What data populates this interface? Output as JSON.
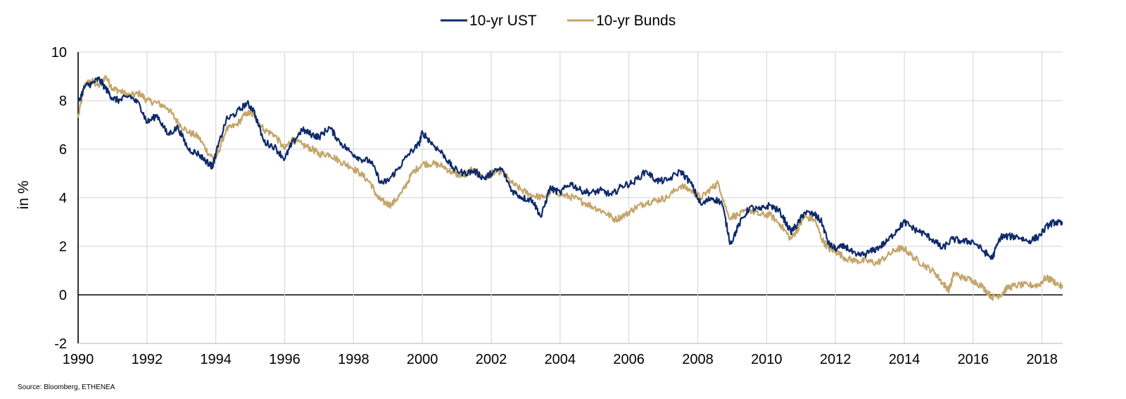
{
  "chart_data": {
    "type": "line",
    "ylabel": "in %",
    "xlabel": "",
    "ylim": [
      -2,
      10
    ],
    "xlim": [
      1990,
      2018.6
    ],
    "x_ticks": [
      "1990",
      "1992",
      "1994",
      "1996",
      "1998",
      "2000",
      "2002",
      "2004",
      "2006",
      "2008",
      "2010",
      "2012",
      "2014",
      "2016",
      "2018"
    ],
    "y_ticks": [
      "-2",
      "0",
      "2",
      "4",
      "6",
      "8",
      "10"
    ],
    "grid": true,
    "legend_position": "top-center",
    "series": [
      {
        "name": "10-yr UST",
        "color": "#0f2a6b",
        "x": [
          1990.0,
          1990.2,
          1990.4,
          1990.6,
          1990.8,
          1991.0,
          1991.2,
          1991.5,
          1991.8,
          1992.0,
          1992.3,
          1992.6,
          1992.9,
          1993.2,
          1993.5,
          1993.8,
          1993.9,
          1994.0,
          1994.3,
          1994.6,
          1994.9,
          1995.1,
          1995.4,
          1995.7,
          1996.0,
          1996.2,
          1996.5,
          1996.8,
          1997.0,
          1997.3,
          1997.6,
          1997.9,
          1998.2,
          1998.5,
          1998.8,
          1999.0,
          1999.3,
          1999.6,
          1999.9,
          2000.0,
          2000.3,
          2000.6,
          2000.9,
          2001.2,
          2001.5,
          2001.8,
          2002.0,
          2002.3,
          2002.6,
          2002.9,
          2003.2,
          2003.45,
          2003.7,
          2004.0,
          2004.3,
          2004.6,
          2004.9,
          2005.2,
          2005.5,
          2005.8,
          2006.1,
          2006.5,
          2006.8,
          2007.1,
          2007.5,
          2007.8,
          2008.1,
          2008.4,
          2008.7,
          2008.95,
          2009.2,
          2009.5,
          2009.8,
          2010.1,
          2010.4,
          2010.7,
          2010.9,
          2011.1,
          2011.4,
          2011.6,
          2011.8,
          2012.0,
          2012.3,
          2012.6,
          2012.9,
          2013.2,
          2013.5,
          2013.8,
          2014.0,
          2014.3,
          2014.6,
          2014.9,
          2015.1,
          2015.4,
          2015.7,
          2016.0,
          2016.3,
          2016.55,
          2016.8,
          2017.0,
          2017.3,
          2017.6,
          2017.9,
          2018.2,
          2018.4,
          2018.6
        ],
        "y": [
          7.9,
          8.6,
          8.7,
          8.9,
          8.5,
          8.1,
          8.0,
          8.2,
          7.8,
          7.1,
          7.4,
          6.6,
          6.9,
          6.0,
          5.8,
          5.4,
          5.3,
          5.8,
          7.2,
          7.5,
          7.9,
          7.6,
          6.3,
          6.1,
          5.6,
          6.2,
          6.8,
          6.6,
          6.5,
          6.9,
          6.3,
          5.9,
          5.6,
          5.5,
          4.6,
          4.7,
          5.2,
          5.8,
          6.2,
          6.7,
          6.2,
          5.8,
          5.2,
          5.0,
          5.1,
          4.8,
          5.0,
          5.2,
          4.3,
          4.0,
          3.9,
          3.2,
          4.4,
          4.2,
          4.6,
          4.3,
          4.2,
          4.3,
          4.1,
          4.5,
          4.6,
          5.1,
          4.7,
          4.7,
          5.1,
          4.6,
          3.7,
          4.0,
          3.8,
          2.1,
          2.9,
          3.6,
          3.5,
          3.7,
          3.4,
          2.6,
          2.9,
          3.4,
          3.3,
          3.0,
          2.1,
          1.9,
          2.0,
          1.6,
          1.7,
          1.9,
          2.2,
          2.7,
          3.0,
          2.7,
          2.5,
          2.2,
          1.9,
          2.3,
          2.2,
          2.2,
          1.8,
          1.5,
          2.4,
          2.4,
          2.4,
          2.2,
          2.4,
          2.9,
          3.0,
          2.9
        ],
        "labels_only_y_shown": true
      },
      {
        "name": "10-yr Bunds",
        "color": "#c4a56a",
        "x": [
          1990.0,
          1990.2,
          1990.4,
          1990.6,
          1990.8,
          1991.0,
          1991.2,
          1991.5,
          1991.8,
          1992.0,
          1992.3,
          1992.6,
          1992.9,
          1993.2,
          1993.5,
          1993.8,
          1994.0,
          1994.3,
          1994.6,
          1994.9,
          1995.1,
          1995.4,
          1995.7,
          1996.0,
          1996.2,
          1996.5,
          1996.8,
          1997.0,
          1997.3,
          1997.6,
          1997.9,
          1998.2,
          1998.5,
          1998.7,
          1998.9,
          1999.1,
          1999.4,
          1999.7,
          2000.0,
          2000.3,
          2000.6,
          2000.9,
          2001.2,
          2001.5,
          2001.8,
          2002.0,
          2002.3,
          2002.6,
          2002.9,
          2003.2,
          2003.5,
          2003.8,
          2004.1,
          2004.4,
          2004.7,
          2005.0,
          2005.3,
          2005.6,
          2005.9,
          2006.2,
          2006.5,
          2006.8,
          2007.1,
          2007.5,
          2007.8,
          2008.1,
          2008.4,
          2008.6,
          2008.9,
          2009.2,
          2009.5,
          2009.8,
          2010.1,
          2010.4,
          2010.7,
          2010.9,
          2011.1,
          2011.4,
          2011.6,
          2011.8,
          2012.0,
          2012.3,
          2012.6,
          2012.9,
          2013.2,
          2013.5,
          2013.8,
          2014.0,
          2014.3,
          2014.6,
          2014.9,
          2015.1,
          2015.3,
          2015.45,
          2015.7,
          2016.0,
          2016.3,
          2016.55,
          2016.8,
          2017.0,
          2017.3,
          2017.6,
          2017.9,
          2018.1,
          2018.3,
          2018.6
        ],
        "y": [
          7.3,
          8.7,
          8.8,
          8.6,
          9.0,
          8.5,
          8.4,
          8.2,
          8.3,
          8.0,
          7.9,
          7.7,
          7.1,
          6.7,
          6.5,
          5.8,
          5.6,
          6.8,
          7.0,
          7.5,
          7.4,
          6.8,
          6.6,
          6.0,
          6.4,
          6.2,
          6.0,
          5.8,
          5.8,
          5.5,
          5.3,
          5.0,
          4.6,
          4.0,
          3.8,
          3.7,
          4.2,
          5.0,
          5.4,
          5.4,
          5.3,
          5.0,
          4.9,
          5.2,
          4.8,
          5.0,
          5.1,
          4.6,
          4.3,
          4.1,
          4.0,
          4.3,
          4.1,
          4.0,
          3.8,
          3.6,
          3.4,
          3.1,
          3.3,
          3.6,
          3.8,
          3.9,
          4.0,
          4.5,
          4.3,
          4.0,
          4.4,
          4.6,
          3.2,
          3.3,
          3.5,
          3.3,
          3.3,
          2.9,
          2.3,
          2.7,
          3.2,
          3.1,
          2.3,
          1.9,
          1.8,
          1.5,
          1.4,
          1.4,
          1.3,
          1.6,
          1.9,
          1.9,
          1.5,
          1.2,
          0.9,
          0.5,
          0.2,
          0.9,
          0.7,
          0.6,
          0.3,
          -0.1,
          0.0,
          0.3,
          0.4,
          0.4,
          0.4,
          0.7,
          0.6,
          0.3
        ],
        "labels_only_y_shown": true
      }
    ],
    "legend": [
      "10-yr UST",
      "10-yr Bunds"
    ]
  },
  "source_note": "Source: Bloomberg, ETHENEA"
}
